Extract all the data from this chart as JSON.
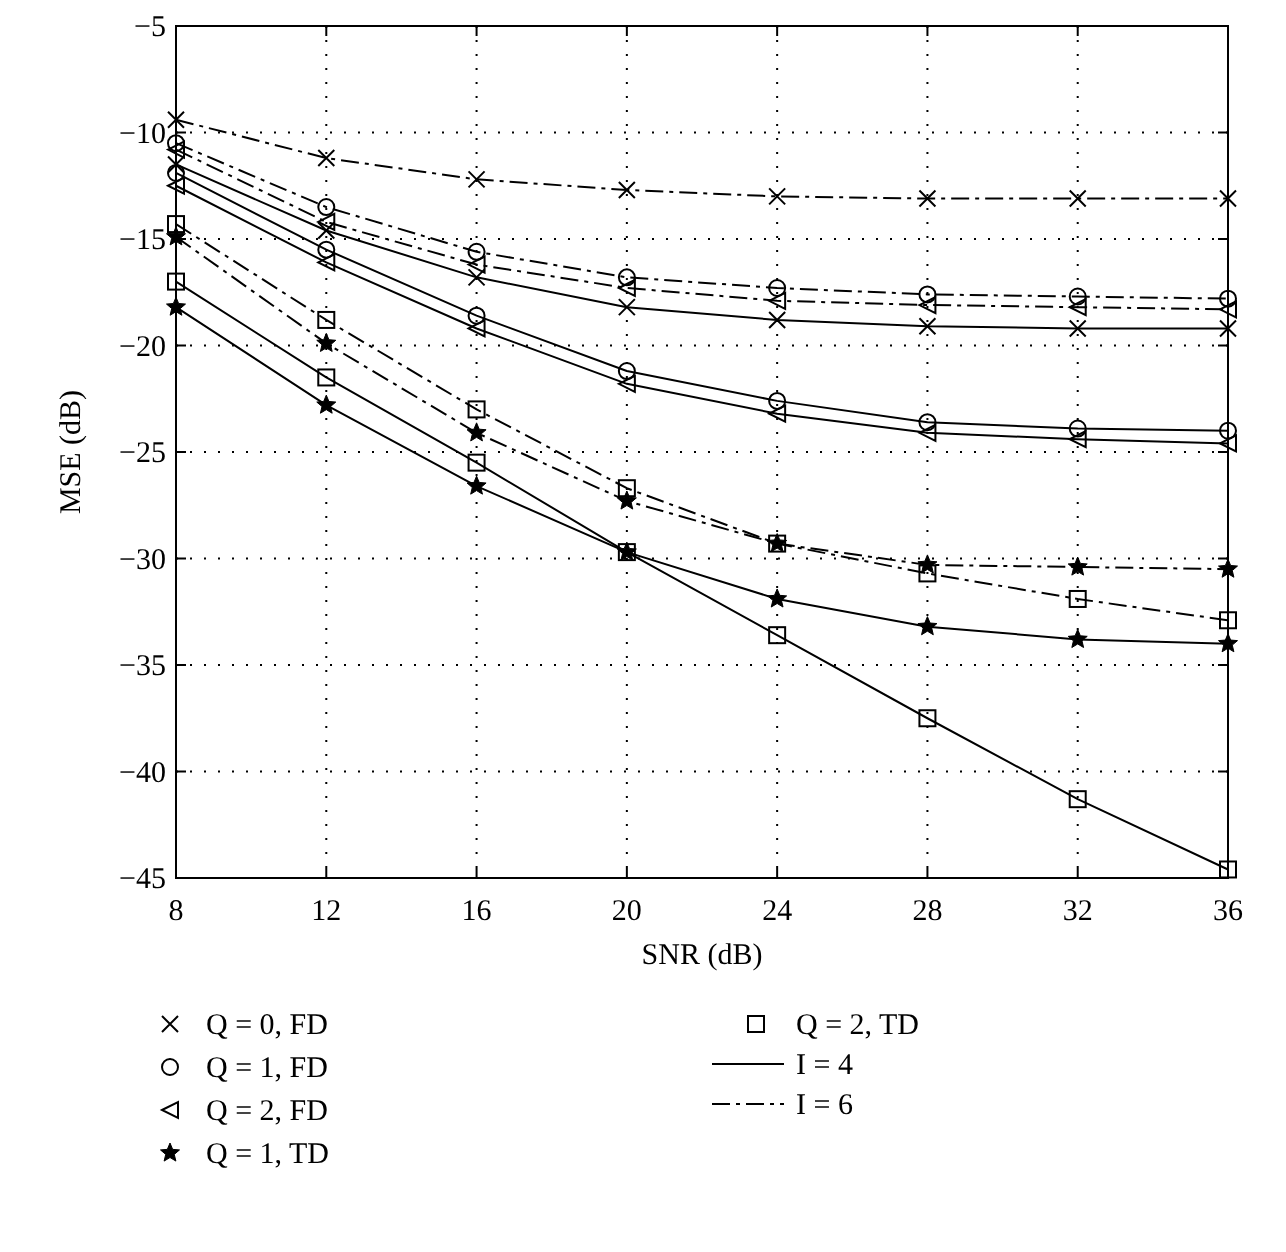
{
  "chart_data": {
    "type": "line",
    "xlabel": "SNR (dB)",
    "ylabel": "MSE (dB)",
    "x": [
      8,
      12,
      16,
      20,
      24,
      28,
      32,
      36
    ],
    "xlim": [
      8,
      36
    ],
    "xticks": [
      8,
      12,
      16,
      20,
      24,
      28,
      32,
      36
    ],
    "ylim": [
      -45,
      -5
    ],
    "yticks": [
      -45,
      -40,
      -35,
      -30,
      -25,
      -20,
      -15,
      -10,
      -5
    ],
    "grid": true,
    "series": [
      {
        "color": "#000000",
        "marker": "cross",
        "line_style": "solid",
        "values": [
          -11.5,
          -14.6,
          -16.8,
          -18.2,
          -18.8,
          -19.1,
          -19.2,
          -19.2
        ]
      },
      {
        "color": "#000000",
        "marker": "cross",
        "line_style": "dashed",
        "values": [
          -9.4,
          -11.2,
          -12.2,
          -12.7,
          -13.0,
          -13.1,
          -13.1,
          -13.1
        ]
      },
      {
        "color": "#000000",
        "marker": "circle",
        "line_style": "solid",
        "values": [
          -11.9,
          -15.5,
          -18.6,
          -21.2,
          -22.6,
          -23.6,
          -23.9,
          -24.0
        ]
      },
      {
        "color": "#000000",
        "marker": "circle",
        "line_style": "dashed",
        "values": [
          -10.5,
          -13.5,
          -15.6,
          -16.8,
          -17.3,
          -17.6,
          -17.7,
          -17.8
        ]
      },
      {
        "color": "#000000",
        "marker": "triangle",
        "line_style": "solid",
        "values": [
          -12.5,
          -16.1,
          -19.2,
          -21.8,
          -23.2,
          -24.1,
          -24.4,
          -24.6
        ]
      },
      {
        "color": "#000000",
        "marker": "triangle",
        "line_style": "dashed",
        "values": [
          -10.8,
          -14.2,
          -16.2,
          -17.3,
          -17.9,
          -18.1,
          -18.2,
          -18.3
        ]
      },
      {
        "color": "#000000",
        "marker": "star",
        "line_style": "solid",
        "values": [
          -18.2,
          -22.8,
          -26.6,
          -29.7,
          -31.9,
          -33.2,
          -33.8,
          -34.0
        ]
      },
      {
        "color": "#000000",
        "marker": "star",
        "line_style": "dashed",
        "values": [
          -14.9,
          -19.9,
          -24.1,
          -27.3,
          -29.3,
          -30.3,
          -30.4,
          -30.5
        ]
      },
      {
        "color": "#000000",
        "marker": "square",
        "line_style": "solid",
        "values": [
          -17.0,
          -21.5,
          -25.5,
          -29.7,
          -33.6,
          -37.5,
          -41.3,
          -44.6
        ]
      },
      {
        "color": "#000000",
        "marker": "square",
        "line_style": "dashed",
        "values": [
          -14.3,
          -18.8,
          -23.0,
          -26.7,
          -29.3,
          -30.7,
          -31.9,
          -32.9
        ]
      }
    ],
    "annotations": [
      "Q = 0, FD",
      "Q = 1, FD",
      "Q = 2, FD",
      "Q = 1, TD",
      "Q = 2, TD",
      "I = 4",
      "I = 6"
    ]
  }
}
